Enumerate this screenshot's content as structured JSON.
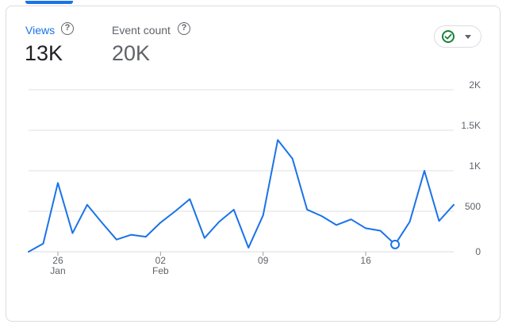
{
  "metrics": [
    {
      "label": "Views",
      "value": "13K",
      "active": true
    },
    {
      "label": "Event count",
      "value": "20K",
      "active": false
    }
  ],
  "help_glyph": "?",
  "status_icon": "check-circle-icon",
  "colors": {
    "accent": "#1a73e8",
    "status_ok": "#188038",
    "grid": "#e0e0e0",
    "text_muted": "#5f6368"
  },
  "chart_data": {
    "type": "line",
    "title": "",
    "xlabel": "",
    "ylabel": "",
    "ylim": [
      0,
      2000
    ],
    "y_ticks": [
      0,
      500,
      1000,
      1500,
      2000
    ],
    "y_tick_labels": [
      "0",
      "500",
      "1K",
      "1.5K",
      "2K"
    ],
    "x_ticks": [
      {
        "day_index": 2,
        "label": "26",
        "sub": "Jan"
      },
      {
        "day_index": 9,
        "label": "02",
        "sub": "Feb"
      },
      {
        "day_index": 16,
        "label": "09",
        "sub": ""
      },
      {
        "day_index": 23,
        "label": "16",
        "sub": ""
      }
    ],
    "series": [
      {
        "values": [
          0,
          100,
          850,
          230,
          580,
          360,
          150,
          210,
          185,
          360,
          500,
          650,
          170,
          370,
          520,
          50,
          450,
          1380,
          1150,
          520,
          440,
          330,
          400,
          290,
          260,
          90,
          370,
          1000,
          380,
          580
        ],
        "highlight_index": 25
      }
    ]
  }
}
